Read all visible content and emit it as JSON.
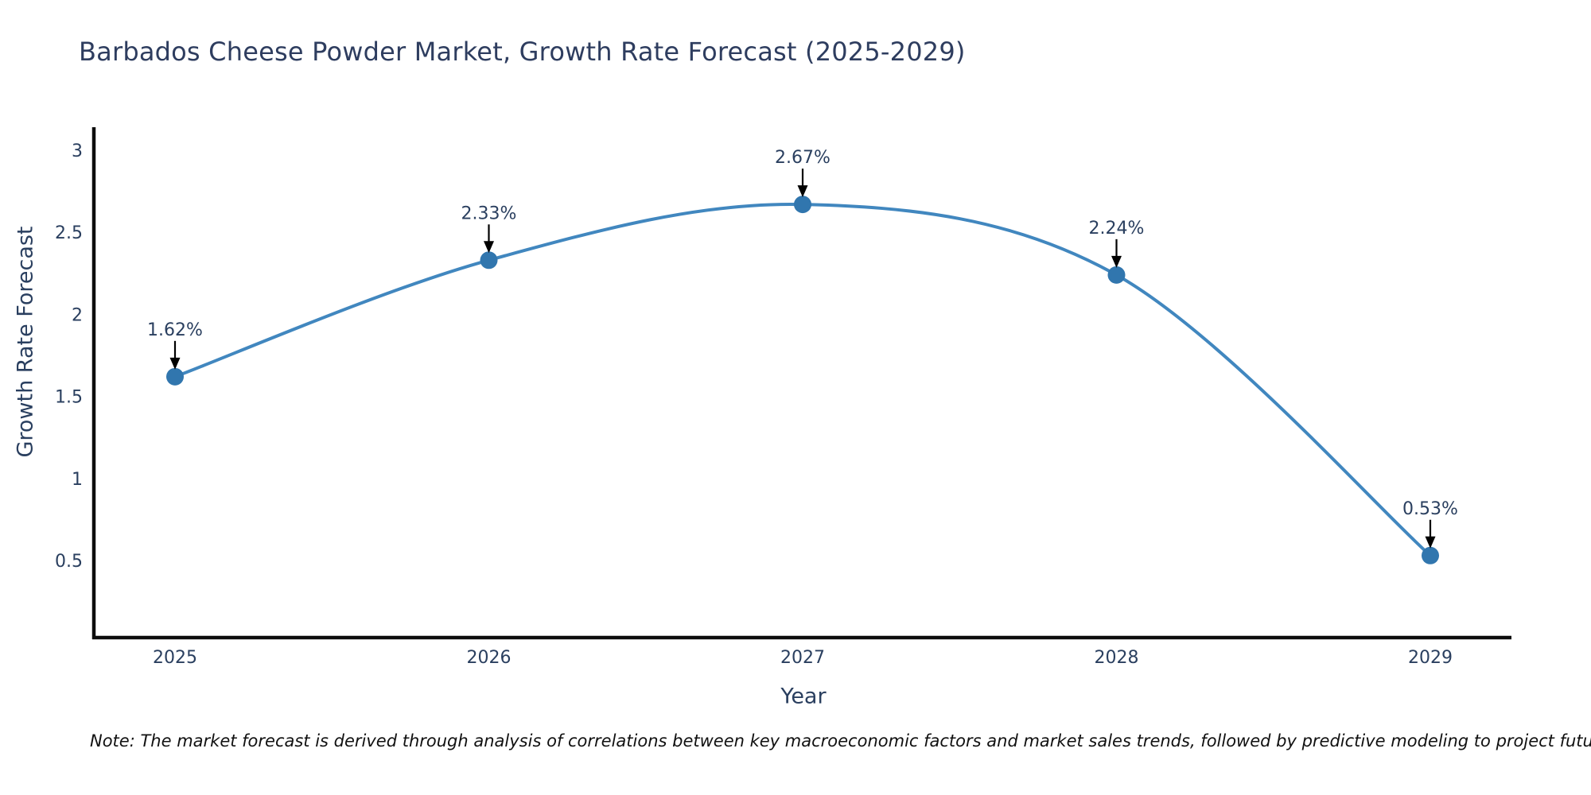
{
  "chart": {
    "title": "Barbados Cheese Powder Market, Growth Rate Forecast (2025-2029)",
    "note": "Note: The market forecast is derived through analysis of correlations between key macroeconomic factors and market sales trends, followed by predictive modeling to project future sales",
    "colors": {
      "line": "#4187bf",
      "marker": "#3176ae",
      "axis": "#0d0d0d",
      "arrow": "#000000",
      "text": "#2a3f5f"
    }
  },
  "chart_data": {
    "type": "line",
    "title": "Barbados Cheese Powder Market, Growth Rate Forecast (2025-2029)",
    "xlabel": "Year",
    "ylabel": "Growth Rate Forecast",
    "categories": [
      "2025",
      "2026",
      "2027",
      "2028",
      "2029"
    ],
    "values": [
      1.62,
      2.33,
      2.67,
      2.24,
      0.53
    ],
    "point_labels": [
      "1.62%",
      "2.33%",
      "2.67%",
      "2.24%",
      "0.53%"
    ],
    "yticks": [
      0.5,
      1,
      1.5,
      2,
      2.5,
      3
    ],
    "ylim": [
      0.03,
      3.14
    ],
    "grid": false,
    "legend": "none",
    "line_style": "smooth-spline",
    "annotations": "percent value above each point with downward arrow"
  }
}
